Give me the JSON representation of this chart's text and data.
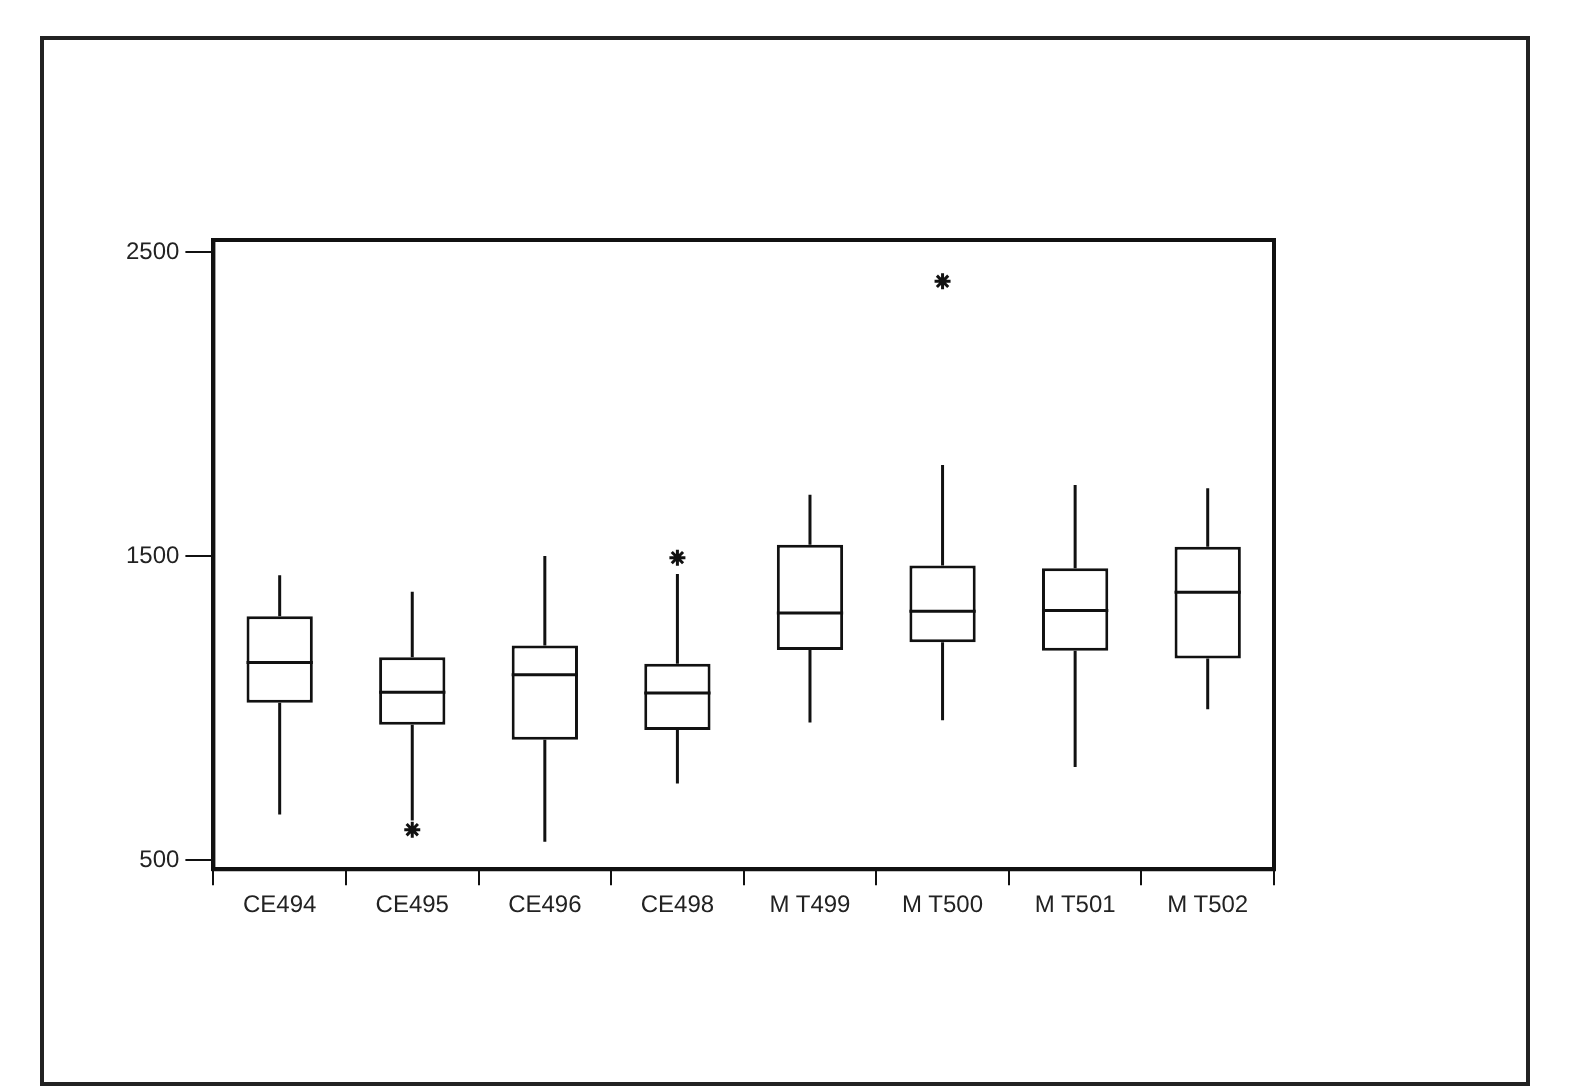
{
  "chart_data": {
    "type": "box",
    "categories": [
      "CE494",
      "CE495",
      "CE496",
      "CE498",
      "M T499",
      "M T500",
      "M T501",
      "M T502"
    ],
    "boxes": [
      {
        "low": 650,
        "q1": 1018,
        "median": 1150,
        "q3": 1302,
        "high": 1437
      },
      {
        "low": 630,
        "q1": 945,
        "median": 1052,
        "q3": 1167,
        "high": 1383,
        "outliers": [
          600
        ]
      },
      {
        "low": 560,
        "q1": 896,
        "median": 1110,
        "q3": 1206,
        "high": 1500
      },
      {
        "low": 752,
        "q1": 928,
        "median": 1050,
        "q3": 1146,
        "high": 1441,
        "outliers": [
          1495
        ]
      },
      {
        "low": 953,
        "q1": 1191,
        "median": 1313,
        "q3": 1537,
        "high": 1702
      },
      {
        "low": 960,
        "q1": 1217,
        "median": 1319,
        "q3": 1469,
        "high": 1800,
        "outliers": [
          2404
        ]
      },
      {
        "low": 806,
        "q1": 1189,
        "median": 1321,
        "q3": 1460,
        "high": 1734
      },
      {
        "low": 996,
        "q1": 1163,
        "median": 1381,
        "q3": 1531,
        "high": 1723
      }
    ],
    "ylim": [
      470,
      2540
    ],
    "yticks": [
      500,
      1500,
      2500
    ]
  }
}
